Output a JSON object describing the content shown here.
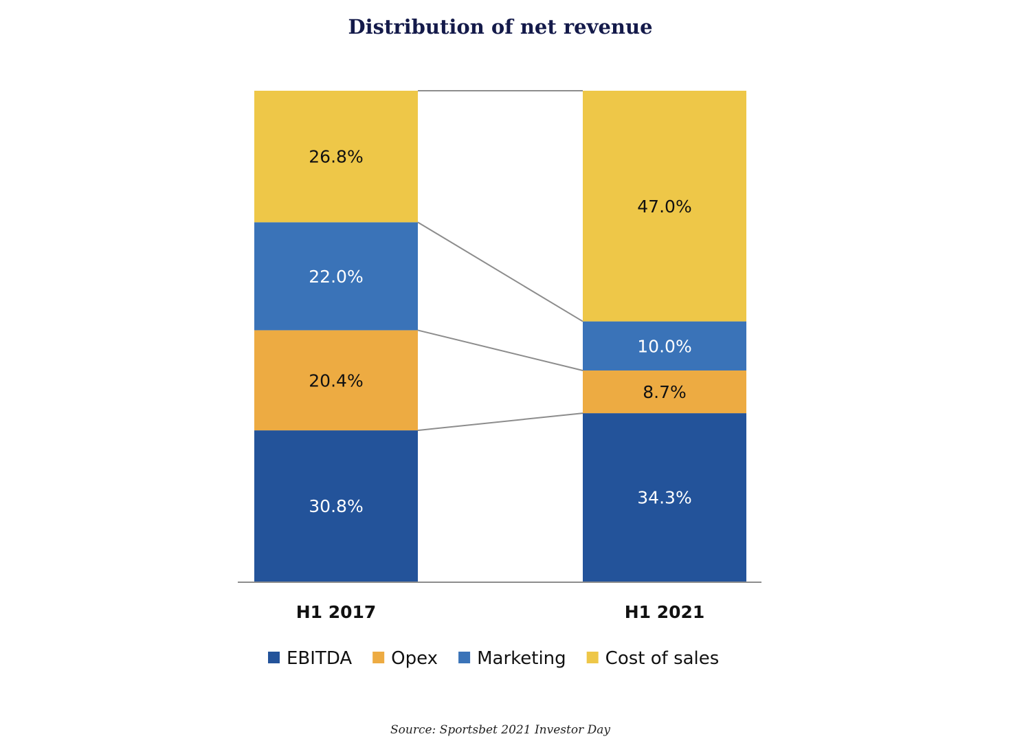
{
  "title": "Distribution of net revenue",
  "source": "Source: Sportsbet 2021 Investor Day",
  "chart_data": {
    "type": "bar",
    "stacked": true,
    "title": "Distribution of net revenue",
    "categories": [
      "H1 2017",
      "H1 2021"
    ],
    "series": [
      {
        "name": "EBITDA",
        "values": [
          30.8,
          34.3
        ],
        "labels": [
          "30.8%",
          "34.3%"
        ],
        "color": "#23539a",
        "text_color": "#ffffff"
      },
      {
        "name": "Opex",
        "values": [
          20.4,
          8.7
        ],
        "labels": [
          "20.4%",
          "8.7%"
        ],
        "color": "#edab42",
        "text_color": "#111111"
      },
      {
        "name": "Marketing",
        "values": [
          22.0,
          10.0
        ],
        "labels": [
          "22.0%",
          "10.0%"
        ],
        "color": "#3a73b8",
        "text_color": "#ffffff"
      },
      {
        "name": "Cost of sales",
        "values": [
          26.8,
          47.0
        ],
        "labels": [
          "26.8%",
          "47.0%"
        ],
        "color": "#eec748",
        "text_color": "#111111"
      }
    ],
    "ylim": [
      0,
      100
    ],
    "unit": "%",
    "xlabel": "",
    "ylabel": "",
    "legend": "bottom",
    "connector_color": "#8c8c8c",
    "axis_color": "#8c8c8c"
  }
}
